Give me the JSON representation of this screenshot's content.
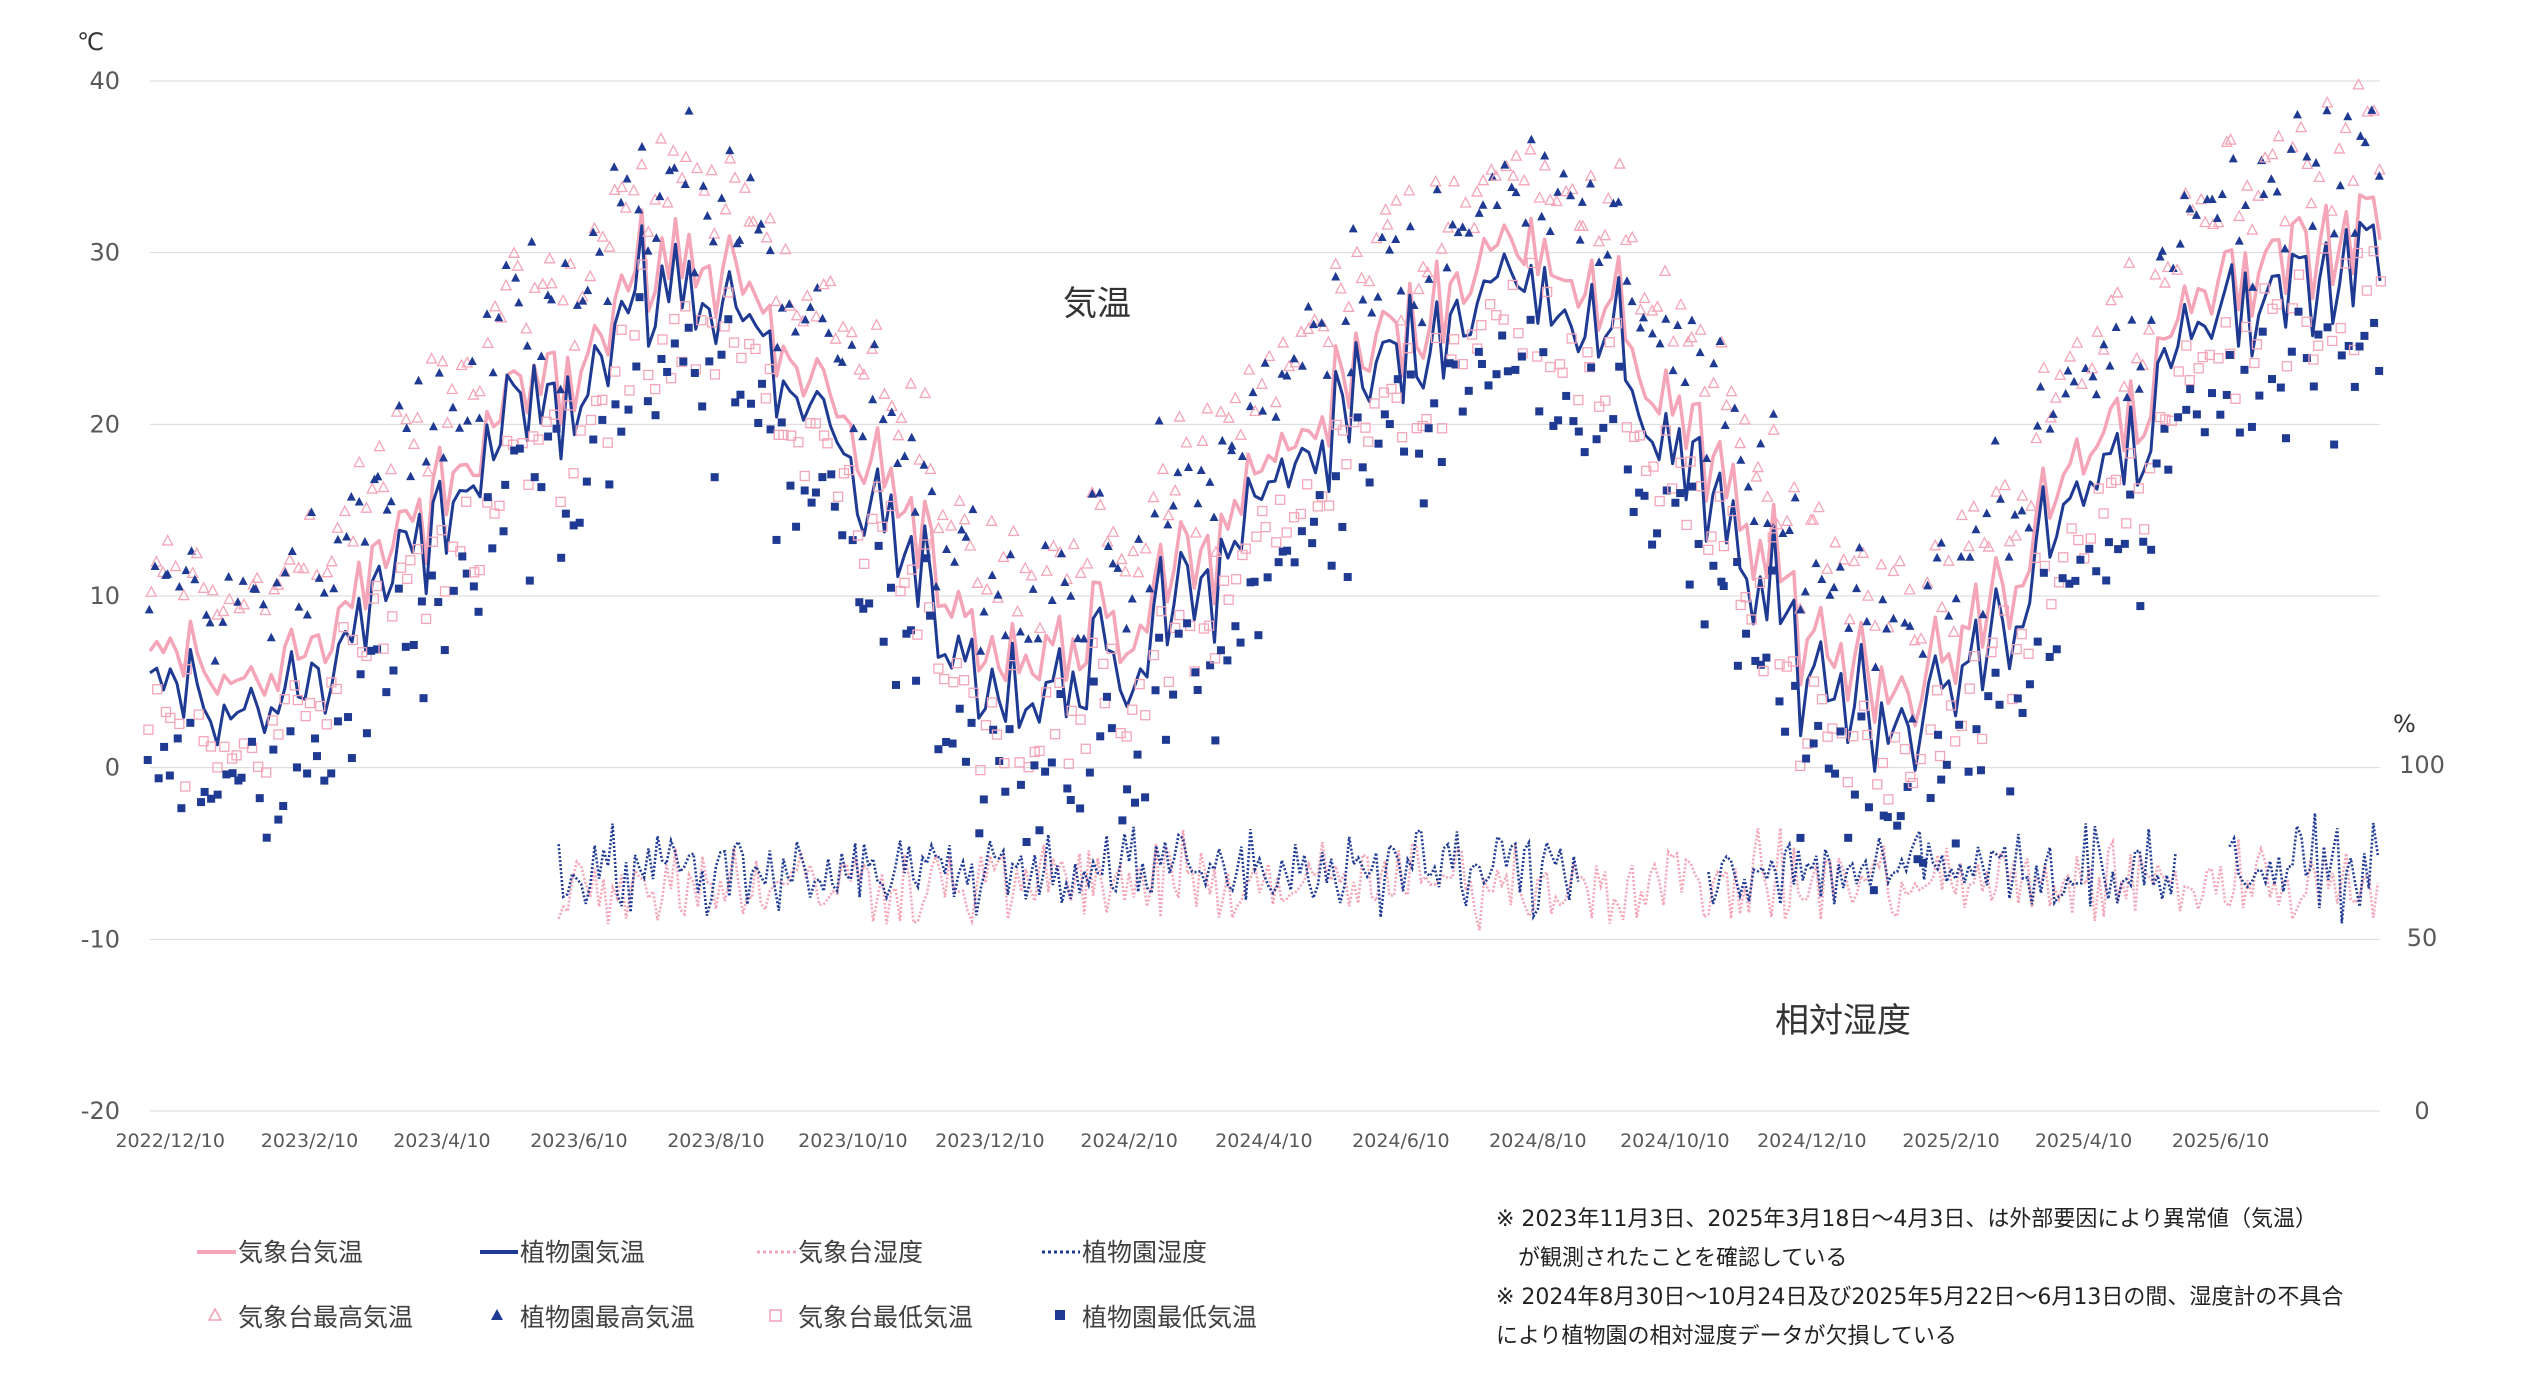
{
  "chart_data": {
    "type": "line",
    "left_axis": {
      "unit": "℃",
      "ticks": [
        "40",
        "30",
        "20",
        "10",
        "0",
        "-10",
        "-20"
      ],
      "ylim": [
        -20,
        40
      ],
      "gridlines": true
    },
    "right_axis": {
      "unit": "%",
      "ticks": [
        "100",
        "50",
        "0"
      ],
      "ylim": [
        0,
        100
      ]
    },
    "x_ticks": [
      "2022/12/10",
      "2023/2/10",
      "2023/4/10",
      "2023/6/10",
      "2023/8/10",
      "2023/10/10",
      "2023/12/10",
      "2024/2/10",
      "2024/4/10",
      "2024/6/10",
      "2024/8/10",
      "2024/10/10",
      "2024/12/10",
      "2025/2/10",
      "2025/4/10",
      "2025/6/10"
    ],
    "x_range": [
      "2022-12-01",
      "2025-08-20"
    ],
    "region_labels": {
      "temperature": "気温",
      "humidity": "相対湿度"
    },
    "series": [
      {
        "name": "気象台気温",
        "kind": "line",
        "axis": "left",
        "color": "#f4a6b8",
        "monthly_values": [
          6.5,
          5.0,
          7.5,
          12.5,
          16.5,
          21.0,
          25.5,
          29.0,
          29.5,
          24.5,
          18.0,
          11.0,
          7.0,
          6.5,
          8.5,
          12.5,
          18.0,
          22.5,
          25.5,
          30.0,
          30.5,
          26.0,
          19.5,
          13.0,
          7.0,
          5.5,
          6.5,
          13.0,
          19.0,
          23.5,
          28.5,
          31.0,
          32.0
        ]
      },
      {
        "name": "植物園気温",
        "kind": "line",
        "axis": "left",
        "color": "#1f3a93",
        "monthly_values": [
          4.5,
          3.0,
          5.5,
          10.5,
          15.0,
          20.0,
          24.0,
          27.5,
          27.5,
          22.5,
          15.5,
          8.5,
          5.0,
          4.5,
          6.5,
          10.5,
          16.5,
          21.0,
          24.0,
          28.0,
          28.5,
          24.0,
          17.0,
          10.5,
          5.0,
          3.5,
          4.5,
          11.0,
          17.0,
          22.0,
          26.5,
          29.0,
          30.0
        ]
      },
      {
        "name": "気象台湿度",
        "kind": "line",
        "axis": "right",
        "color": "#f4a6b8",
        "dashed": true,
        "start": "2023-06-01",
        "end": "2025-08-20",
        "range_percent": [
          45,
          90
        ],
        "mean_percent": 66
      },
      {
        "name": "植物園湿度",
        "kind": "line",
        "axis": "right",
        "color": "#1f3a93",
        "dashed": true,
        "start": "2023-06-01",
        "end": "2025-08-20",
        "range_percent": [
          45,
          95
        ],
        "mean_percent": 70,
        "missing": [
          [
            "2024-08-30",
            "2024-10-24"
          ],
          [
            "2025-05-22",
            "2025-06-13"
          ]
        ]
      },
      {
        "name": "気象台最高気温",
        "kind": "marker",
        "marker": "open-triangle",
        "axis": "left",
        "color": "#f4a6b8",
        "offset_from_mean": 5.0
      },
      {
        "name": "植物園最高気温",
        "kind": "marker",
        "marker": "filled-triangle",
        "axis": "left",
        "color": "#1f3a93",
        "offset_from_mean": 6.0
      },
      {
        "name": "気象台最低気温",
        "kind": "marker",
        "marker": "open-square",
        "axis": "left",
        "color": "#f4a6b8",
        "offset_from_mean": -4.0
      },
      {
        "name": "植物園最低気温",
        "kind": "marker",
        "marker": "filled-square",
        "axis": "left",
        "color": "#1f3a93",
        "offset_from_mean": -5.0
      }
    ],
    "notes": [
      "※ 2023年11月3日、2025年3月18日～4月3日、は外部要因により異常値（気温）",
      "　が観測されたことを確認している",
      "※ 2024年8月30日～10月24日及び2025年5月22日～6月13日の間、湿度計の不具合",
      "により植物園の相対湿度データが欠損している"
    ]
  }
}
